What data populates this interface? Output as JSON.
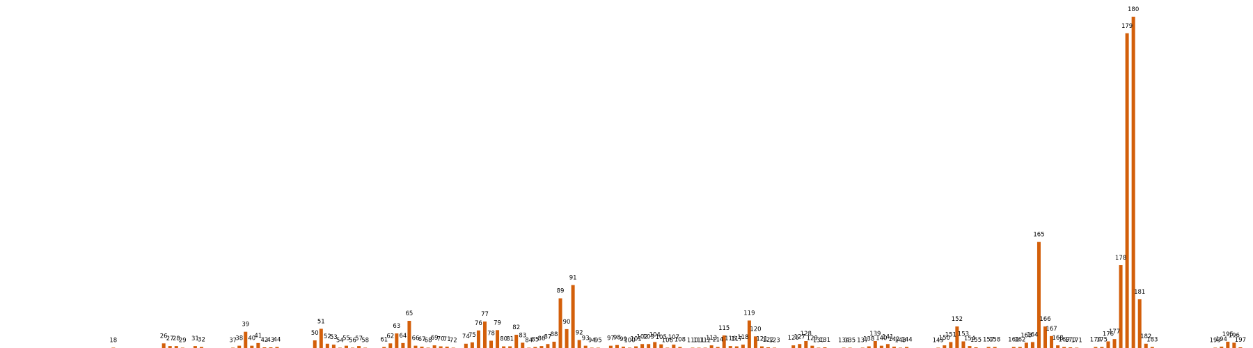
{
  "chart_data": {
    "type": "bar",
    "color": "#d35f0a",
    "title": "",
    "xlabel": "",
    "ylabel": "",
    "xlim": [
      0,
      199
    ],
    "ylim": [
      0,
      100
    ],
    "grid": false,
    "legend": "none",
    "axes_visible": false,
    "x": [
      18,
      26,
      27,
      28,
      29,
      31,
      32,
      37,
      38,
      39,
      40,
      41,
      42,
      43,
      44,
      50,
      51,
      52,
      53,
      54,
      55,
      56,
      57,
      58,
      61,
      62,
      63,
      64,
      65,
      66,
      67,
      68,
      69,
      70,
      71,
      72,
      74,
      75,
      76,
      77,
      78,
      79,
      80,
      81,
      82,
      83,
      84,
      85,
      86,
      87,
      88,
      89,
      90,
      91,
      92,
      93,
      94,
      95,
      97,
      98,
      99,
      100,
      101,
      102,
      103,
      104,
      105,
      106,
      107,
      108,
      110,
      111,
      112,
      113,
      114,
      115,
      116,
      117,
      118,
      119,
      120,
      121,
      122,
      123,
      126,
      127,
      128,
      129,
      130,
      131,
      134,
      135,
      137,
      138,
      139,
      140,
      141,
      142,
      143,
      144,
      149,
      150,
      151,
      152,
      153,
      154,
      155,
      157,
      158,
      161,
      162,
      163,
      164,
      165,
      166,
      167,
      168,
      169,
      170,
      171,
      174,
      175,
      176,
      177,
      178,
      179,
      180,
      181,
      182,
      183,
      193,
      194,
      195,
      196,
      197
    ],
    "labels": [
      "18",
      "26",
      "27",
      "28",
      "29",
      "31",
      "32",
      "37",
      "38",
      "39",
      "40",
      "41",
      "42",
      "43",
      "44",
      "50",
      "51",
      "52",
      "53",
      "54",
      "55",
      "56",
      "57",
      "58",
      "61",
      "62",
      "63",
      "64",
      "65",
      "66",
      "67",
      "68",
      "69",
      "70",
      "71",
      "72",
      "74",
      "75",
      "76",
      "77",
      "78",
      "79",
      "80",
      "81",
      "82",
      "83",
      "84",
      "85",
      "86",
      "87",
      "88",
      "89",
      "90",
      "91",
      "92",
      "93",
      "94",
      "95",
      "97",
      "98",
      "99",
      "100",
      "101",
      "102",
      "103",
      "104",
      "105",
      "106",
      "107",
      "108",
      "110",
      "111",
      "112",
      "113",
      "114",
      "115",
      "116",
      "117",
      "118",
      "119",
      "120",
      "121",
      "122",
      "123",
      "126",
      "127",
      "128",
      "129",
      "130",
      "131",
      "134",
      "135",
      "137",
      "138",
      "139",
      "140",
      "141",
      "142",
      "143",
      "144",
      "149",
      "150",
      "151",
      "152",
      "153",
      "154",
      "155",
      "157",
      "158",
      "161",
      "162",
      "163",
      "164",
      "165",
      "166",
      "167",
      "168",
      "169",
      "170",
      "171",
      "174",
      "175",
      "176",
      "177",
      "178",
      "179",
      "180",
      "181",
      "182",
      "183",
      "193",
      "194",
      "195",
      "196",
      "197"
    ],
    "values": [
      0.1,
      1.4,
      0.6,
      0.6,
      0.1,
      0.6,
      0.3,
      0.1,
      0.7,
      4.9,
      0.7,
      1.5,
      0.2,
      0.2,
      0.3,
      2.3,
      5.8,
      1.3,
      1.0,
      0.1,
      0.7,
      0.1,
      0.6,
      0.1,
      0.3,
      1.4,
      4.4,
      1.5,
      8.2,
      0.7,
      0.4,
      0.1,
      0.8,
      0.5,
      0.4,
      0.1,
      1.3,
      1.7,
      5.3,
      8.0,
      2.2,
      5.4,
      0.5,
      0.5,
      4.0,
      1.6,
      0.1,
      0.3,
      0.6,
      1.2,
      1.9,
      15.0,
      5.7,
      19.0,
      2.4,
      0.7,
      0.1,
      0.1,
      0.7,
      0.9,
      0.4,
      0.1,
      0.5,
      1.2,
      1.2,
      1.8,
      1.1,
      0.1,
      1.0,
      0.3,
      0.1,
      0.1,
      0.1,
      0.8,
      0.3,
      3.8,
      0.6,
      0.5,
      1.0,
      8.3,
      3.5,
      0.5,
      0.2,
      0.1,
      0.8,
      1.2,
      2.1,
      0.7,
      0.1,
      0.2,
      0.1,
      0.1,
      0.1,
      0.5,
      2.1,
      0.7,
      1.2,
      0.4,
      0.1,
      0.3,
      0.1,
      0.8,
      1.8,
      6.5,
      2.0,
      0.6,
      0.2,
      0.3,
      0.3,
      0.3,
      0.3,
      1.6,
      1.8,
      32.0,
      6.5,
      3.6,
      0.8,
      0.3,
      0.2,
      0.1,
      0.3,
      0.3,
      2.0,
      2.7,
      25.0,
      95.0,
      100.0,
      14.7,
      1.3,
      0.3,
      0.1,
      0.4,
      1.9,
      1.6,
      0.2
    ]
  }
}
